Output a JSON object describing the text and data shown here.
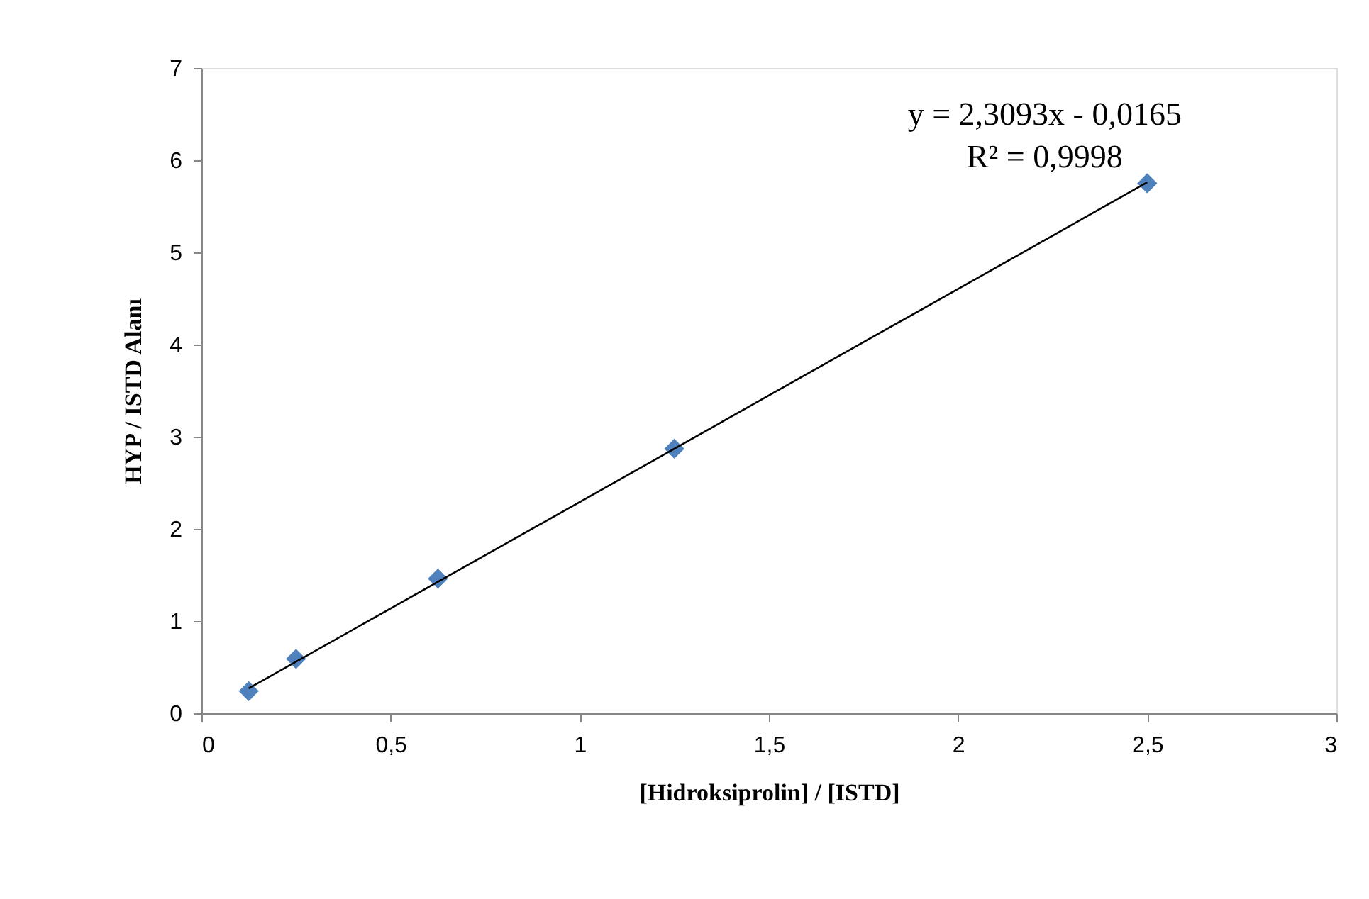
{
  "chart_data": {
    "type": "scatter",
    "xlabel": "[Hidroksiprolin] / [ISTD]",
    "ylabel": "HYP / ISTD Alanı",
    "xlim": [
      0,
      3
    ],
    "xticks": [
      0,
      {
        "value": 0.5,
        "label": "0,5"
      },
      1,
      {
        "value": 1.5,
        "label": "1,5"
      },
      2,
      {
        "value": 2.5,
        "label": "2,5"
      },
      3
    ],
    "ylim": [
      0,
      7
    ],
    "yticks": [
      0,
      1,
      2,
      3,
      4,
      5,
      6,
      7
    ],
    "grid": false,
    "marker": "diamond",
    "annotations": [
      "y = 2,3093x - 0,0165",
      "R² = 0,9998"
    ],
    "series": [
      {
        "color": "#4f81bd",
        "x": [
          0.125,
          0.25,
          0.625,
          1.25,
          2.5
        ],
        "values": [
          0.24,
          0.59,
          1.46,
          2.87,
          5.75
        ]
      },
      {
        "type": "line",
        "color": "#000000",
        "line_style": "solid",
        "marker": "none",
        "x": [
          0.125,
          2.5
        ],
        "values": [
          0.27,
          5.76
        ]
      }
    ]
  }
}
